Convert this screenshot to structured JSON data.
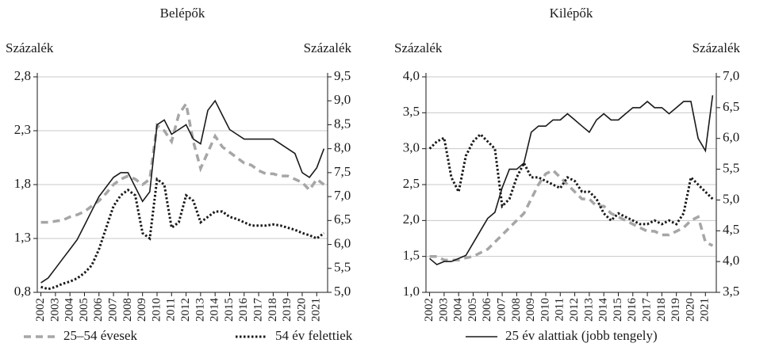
{
  "chart_data": [
    {
      "type": "line",
      "title": "Belépők",
      "ylabel": "Százalék",
      "y2label": "Százalék",
      "x": [
        2002,
        2002.5,
        2003,
        2003.5,
        2004,
        2004.5,
        2005,
        2005.5,
        2006,
        2006.5,
        2007,
        2007.5,
        2008,
        2008.5,
        2009,
        2009.5,
        2010,
        2010.5,
        2011,
        2011.5,
        2012,
        2012.5,
        2013,
        2013.5,
        2014,
        2014.5,
        2015,
        2015.5,
        2016,
        2016.5,
        2017,
        2017.5,
        2018,
        2018.5,
        2019,
        2019.5,
        2020,
        2020.5,
        2021,
        2021.5
      ],
      "xlim": [
        2001.75,
        2021.75
      ],
      "xticks": [
        2002,
        2003,
        2004,
        2005,
        2006,
        2007,
        2008,
        2009,
        2010,
        2011,
        2012,
        2013,
        2014,
        2015,
        2016,
        2017,
        2018,
        2019,
        2020,
        2021
      ],
      "ylim": [
        0.8,
        2.8
      ],
      "yticks": [
        {
          "value": 0.8,
          "label": "0,8"
        },
        {
          "value": 1.3,
          "label": "1,3"
        },
        {
          "value": 1.8,
          "label": "1,8"
        },
        {
          "value": 2.3,
          "label": "2,3"
        },
        {
          "value": 2.8,
          "label": "2,8"
        }
      ],
      "y2lim": [
        5,
        9.5
      ],
      "y2ticks": [
        {
          "value": 5,
          "label": "5,0"
        },
        {
          "value": 5.5,
          "label": "5,5"
        },
        {
          "value": 6,
          "label": "6,0"
        },
        {
          "value": 6.5,
          "label": "6,5"
        },
        {
          "value": 7,
          "label": "7,0"
        },
        {
          "value": 7.5,
          "label": "7,5"
        },
        {
          "value": 8,
          "label": "8,0"
        },
        {
          "value": 8.5,
          "label": "8,5"
        },
        {
          "value": 9,
          "label": "9,0"
        },
        {
          "value": 9.5,
          "label": "9,5"
        }
      ],
      "grid": true,
      "series": [
        {
          "name": "25–54 évesek",
          "color": "#a6a6a6",
          "dash": "dashed",
          "values": [
            1.45,
            1.45,
            1.46,
            1.47,
            1.5,
            1.52,
            1.55,
            1.6,
            1.65,
            1.72,
            1.8,
            1.85,
            1.88,
            1.85,
            1.8,
            1.85,
            2.35,
            2.3,
            2.2,
            2.45,
            2.55,
            2.2,
            1.95,
            2.1,
            2.25,
            2.15,
            2.1,
            2.05,
            2.0,
            1.98,
            1.93,
            1.9,
            1.9,
            1.88,
            1.88,
            1.85,
            1.82,
            1.75,
            1.85,
            1.8
          ]
        },
        {
          "name": "54 év felettiek",
          "color": "#1a1a1a",
          "dash": "dotted",
          "values": [
            0.85,
            0.83,
            0.85,
            0.88,
            0.9,
            0.93,
            0.98,
            1.05,
            1.2,
            1.4,
            1.6,
            1.7,
            1.75,
            1.7,
            1.35,
            1.3,
            1.85,
            1.8,
            1.4,
            1.45,
            1.7,
            1.65,
            1.45,
            1.5,
            1.55,
            1.55,
            1.5,
            1.48,
            1.45,
            1.42,
            1.42,
            1.42,
            1.43,
            1.42,
            1.4,
            1.38,
            1.35,
            1.33,
            1.3,
            1.35
          ]
        },
        {
          "name": "25 év alattiak (jobb tengely)",
          "color": "#1a1a1a",
          "dash": "solid",
          "axis": "y2",
          "values": [
            5.2,
            5.3,
            5.5,
            5.7,
            5.9,
            6.1,
            6.4,
            6.7,
            7.0,
            7.2,
            7.4,
            7.5,
            7.5,
            7.2,
            6.9,
            7.1,
            8.5,
            8.6,
            8.3,
            8.4,
            8.5,
            8.2,
            8.1,
            8.8,
            9.0,
            8.7,
            8.4,
            8.3,
            8.2,
            8.2,
            8.2,
            8.2,
            8.2,
            8.1,
            8.0,
            7.9,
            7.5,
            7.4,
            7.6,
            8.0
          ]
        }
      ]
    },
    {
      "type": "line",
      "title": "Kilépők",
      "ylabel": "Százalék",
      "y2label": "Százalék",
      "x": [
        2002,
        2002.5,
        2003,
        2003.5,
        2004,
        2004.5,
        2005,
        2005.5,
        2006,
        2006.5,
        2007,
        2007.5,
        2008,
        2008.5,
        2009,
        2009.5,
        2010,
        2010.5,
        2011,
        2011.5,
        2012,
        2012.5,
        2013,
        2013.5,
        2014,
        2014.5,
        2015,
        2015.5,
        2016,
        2016.5,
        2017,
        2017.5,
        2018,
        2018.5,
        2019,
        2019.5,
        2020,
        2020.5,
        2021,
        2021.5
      ],
      "xlim": [
        2001.75,
        2021.75
      ],
      "xticks": [
        2002,
        2003,
        2004,
        2005,
        2006,
        2007,
        2008,
        2009,
        2010,
        2011,
        2012,
        2013,
        2014,
        2015,
        2016,
        2017,
        2018,
        2019,
        2020,
        2021
      ],
      "ylim": [
        1,
        4
      ],
      "yticks": [
        {
          "value": 1,
          "label": "1,0"
        },
        {
          "value": 1.5,
          "label": "1,5"
        },
        {
          "value": 2,
          "label": "2,0"
        },
        {
          "value": 2.5,
          "label": "2,5"
        },
        {
          "value": 3,
          "label": "3,0"
        },
        {
          "value": 3.5,
          "label": "3,5"
        },
        {
          "value": 4,
          "label": "4,0"
        }
      ],
      "y2lim": [
        3.5,
        7
      ],
      "y2ticks": [
        {
          "value": 3.5,
          "label": "3,5"
        },
        {
          "value": 4,
          "label": "4,0"
        },
        {
          "value": 4.5,
          "label": "4,5"
        },
        {
          "value": 5,
          "label": "5,0"
        },
        {
          "value": 5.5,
          "label": "5,5"
        },
        {
          "value": 6,
          "label": "6,0"
        },
        {
          "value": 6.5,
          "label": "6,5"
        },
        {
          "value": 7,
          "label": "7,0"
        }
      ],
      "grid": true,
      "series": [
        {
          "color": "#a6a6a6",
          "dash": "dashed",
          "values": [
            1.5,
            1.5,
            1.45,
            1.45,
            1.45,
            1.48,
            1.5,
            1.55,
            1.6,
            1.7,
            1.8,
            1.9,
            2.0,
            2.1,
            2.3,
            2.5,
            2.65,
            2.7,
            2.6,
            2.5,
            2.4,
            2.3,
            2.3,
            2.2,
            2.2,
            2.1,
            2.05,
            2.0,
            1.95,
            1.9,
            1.85,
            1.85,
            1.8,
            1.8,
            1.85,
            1.9,
            2.0,
            2.05,
            1.7,
            1.65
          ]
        },
        {
          "color": "#1a1a1a",
          "dash": "dotted",
          "values": [
            3.0,
            3.1,
            3.15,
            2.6,
            2.4,
            2.9,
            3.1,
            3.2,
            3.1,
            3.0,
            2.2,
            2.3,
            2.6,
            2.8,
            2.6,
            2.6,
            2.55,
            2.5,
            2.45,
            2.6,
            2.55,
            2.4,
            2.4,
            2.3,
            2.1,
            2.0,
            2.1,
            2.05,
            2.0,
            1.95,
            1.95,
            2.0,
            1.95,
            2.0,
            1.95,
            2.1,
            2.6,
            2.5,
            2.4,
            2.3
          ]
        },
        {
          "color": "#1a1a1a",
          "dash": "solid",
          "axis": "y2",
          "values": [
            4.05,
            3.95,
            4.0,
            4.0,
            4.05,
            4.1,
            4.3,
            4.5,
            4.7,
            4.8,
            5.2,
            5.5,
            5.5,
            5.6,
            6.1,
            6.2,
            6.2,
            6.3,
            6.3,
            6.4,
            6.3,
            6.2,
            6.1,
            6.3,
            6.4,
            6.3,
            6.3,
            6.4,
            6.5,
            6.5,
            6.6,
            6.5,
            6.5,
            6.4,
            6.5,
            6.6,
            6.6,
            6.0,
            5.8,
            6.7
          ]
        }
      ]
    }
  ]
}
